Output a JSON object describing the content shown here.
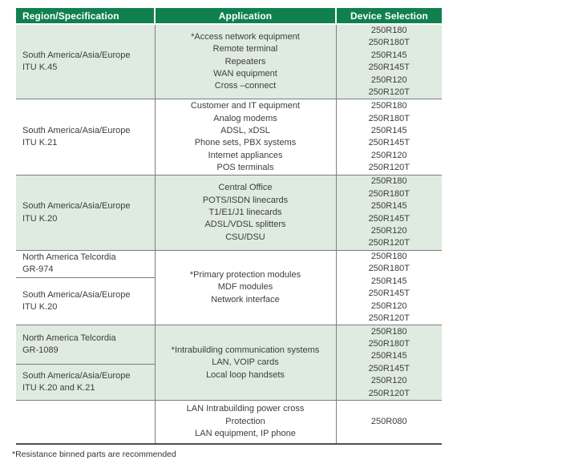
{
  "colors": {
    "header_green": "#10804f",
    "row_shade_green": "#dfeae0",
    "grid_line": "#7d7d7d",
    "bottom_rule": "#4f4f4f",
    "body_text": "#3d3d3d"
  },
  "table": {
    "header": {
      "region": "Region/Specification",
      "application": "Application",
      "device": "Device Selection"
    },
    "groups": [
      {
        "regions": [
          {
            "lines": [
              "South America/Asia/Europe",
              "ITU K.45"
            ]
          }
        ],
        "applications": [
          "*Access network equipment",
          "Remote terminal",
          "Repeaters",
          "WAN equipment",
          "Cross –connect"
        ],
        "devices": [
          "250R180",
          "250R180T",
          "250R145",
          "250R145T",
          "250R120",
          "250R120T"
        ]
      },
      {
        "regions": [
          {
            "lines": [
              "South America/Asia/Europe",
              "ITU K.21"
            ]
          }
        ],
        "applications": [
          "Customer and IT equipment",
          "Analog modems",
          "ADSL, xDSL",
          "Phone sets, PBX systems",
          "Internet appliances",
          "POS terminals"
        ],
        "devices": [
          "250R180",
          "250R180T",
          "250R145",
          "250R145T",
          "250R120",
          "250R120T"
        ]
      },
      {
        "regions": [
          {
            "lines": [
              "South America/Asia/Europe",
              "ITU K.20"
            ]
          }
        ],
        "applications": [
          "Central Office",
          "POTS/ISDN linecards",
          "T1/E1/J1 linecards",
          "ADSL/VDSL splitters",
          "CSU/DSU"
        ],
        "devices": [
          "250R180",
          "250R180T",
          "250R145",
          "250R145T",
          "250R120",
          "250R120T"
        ]
      },
      {
        "regions": [
          {
            "lines": [
              "North America Telcordia",
              "GR-974"
            ]
          },
          {
            "lines": [
              "South America/Asia/Europe",
              "ITU K.20"
            ]
          }
        ],
        "applications": [
          "*Primary protection modules",
          "MDF modules",
          "Network interface"
        ],
        "devices": [
          "250R180",
          "250R180T",
          "250R145",
          "250R145T",
          "250R120",
          "250R120T"
        ]
      },
      {
        "regions": [
          {
            "lines": [
              "North America Telcordia",
              "GR-1089"
            ]
          },
          {
            "lines": [
              "South America/Asia/Europe",
              "ITU K.20 and K.21"
            ]
          }
        ],
        "applications": [
          "*Intrabuilding communication systems",
          "LAN, VOIP cards",
          "Local loop handsets"
        ],
        "devices": [
          "250R180",
          "250R180T",
          "250R145",
          "250R145T",
          "250R120",
          "250R120T"
        ]
      },
      {
        "regions": [
          {
            "lines": []
          }
        ],
        "applications": [
          "LAN Intrabuilding power cross",
          "Protection",
          "LAN equipment, IP phone"
        ],
        "devices": [
          "250R080"
        ]
      }
    ]
  },
  "footnote": "*Resistance binned parts are recommended"
}
